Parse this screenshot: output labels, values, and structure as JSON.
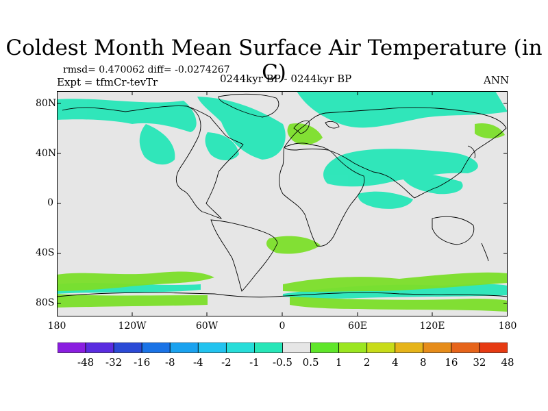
{
  "title": "Coldest Month Mean Surface Air Temperature (in C)",
  "stats_line": "rmsd= 0.470062 diff= -0.0274267",
  "expt_line": "Expt = tfmCr-tevTr",
  "period": "0244kyr BP - 0244kyr BP",
  "season": "ANN",
  "axes": {
    "y_ticks": [
      "80N",
      "40N",
      "0",
      "40S",
      "80S"
    ],
    "x_ticks": [
      "180",
      "120W",
      "60W",
      "0",
      "60E",
      "120E",
      "180"
    ]
  },
  "colorbar": {
    "labels": [
      "-48",
      "-32",
      "-16",
      "-8",
      "-4",
      "-2",
      "-1",
      "-0.5",
      "0.5",
      "1",
      "2",
      "4",
      "8",
      "16",
      "32",
      "48"
    ],
    "colors": [
      "#8a1ee0",
      "#5a2ce0",
      "#2b4ad6",
      "#1a73e6",
      "#1aa2ef",
      "#22c3ef",
      "#27ddd9",
      "#27e6b8",
      "#e6e6e6",
      "#5fe62a",
      "#9be620",
      "#c8dc19",
      "#e6b41a",
      "#e68c1a",
      "#e6641a",
      "#e63a12"
    ]
  },
  "map": {
    "background": "#e6e6e6",
    "coast_color": "#000000"
  }
}
